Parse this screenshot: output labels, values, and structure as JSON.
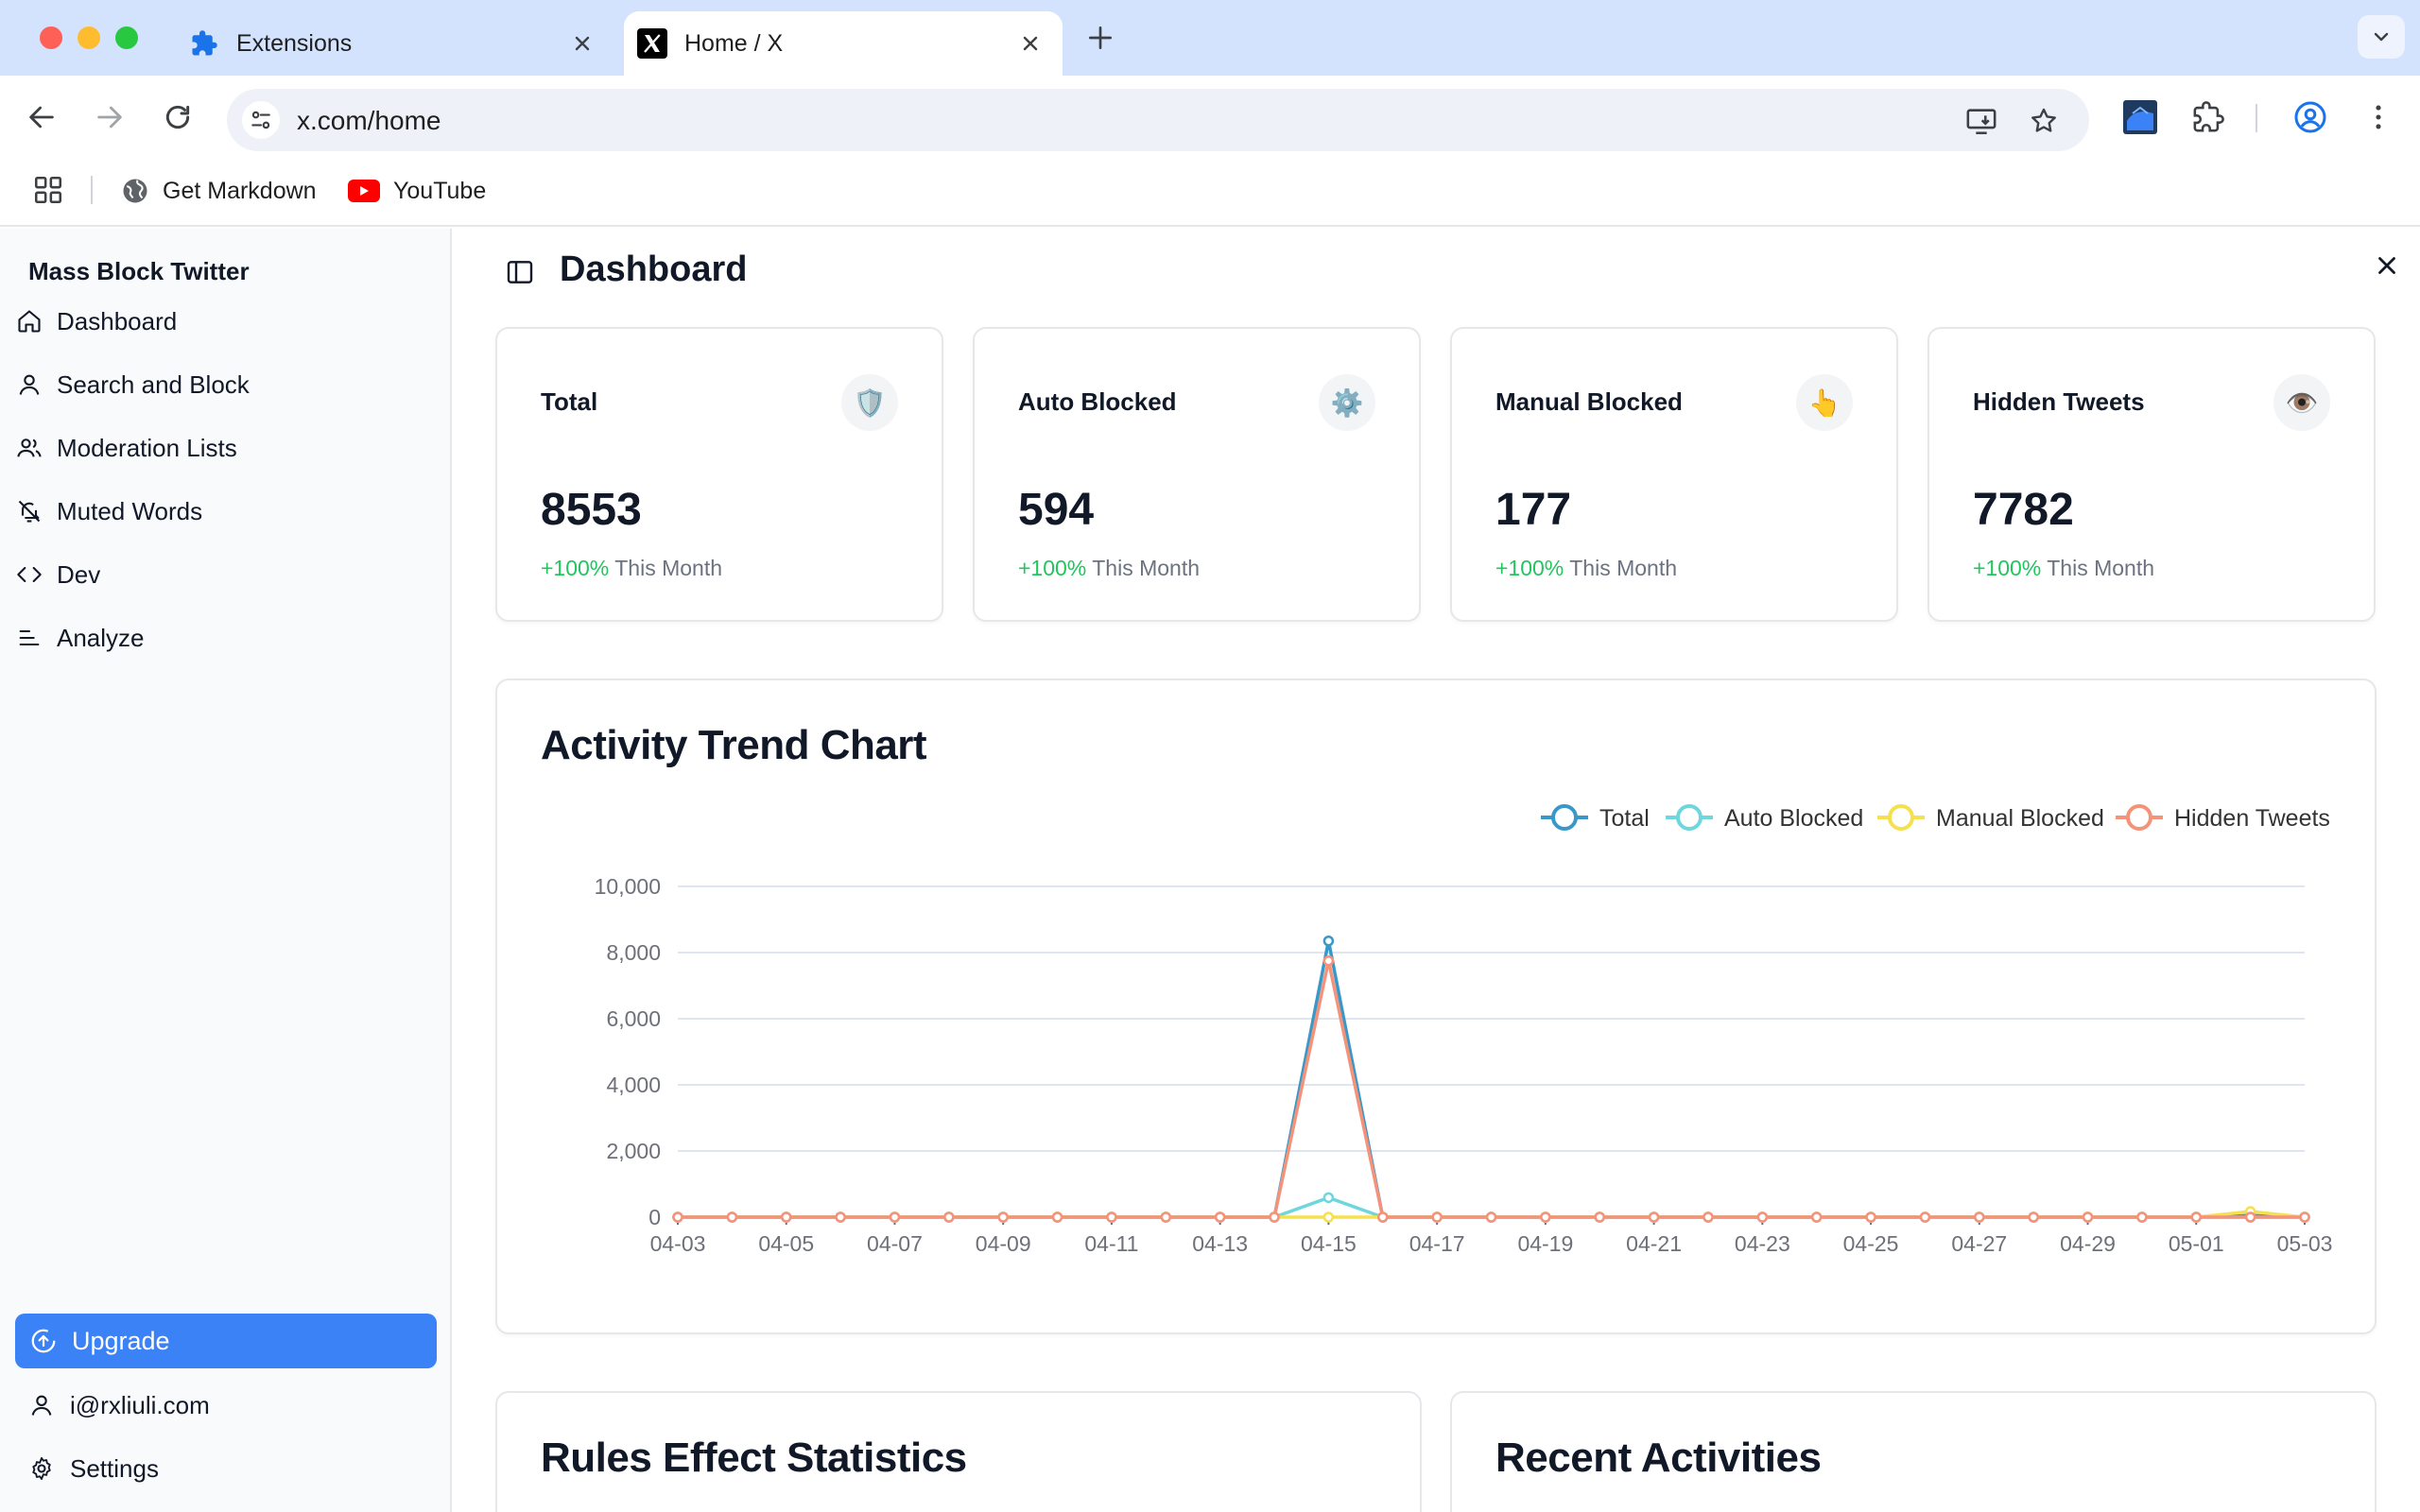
{
  "browser": {
    "tabs": [
      {
        "label": "Extensions",
        "icon": "puzzle-icon",
        "active": false
      },
      {
        "label": "Home / X",
        "icon": "x-logo-icon",
        "active": true
      }
    ],
    "url": "x.com/home",
    "bookmarks": [
      {
        "label": "Get Markdown",
        "icon": "globe-icon"
      },
      {
        "label": "YouTube",
        "icon": "youtube-icon"
      }
    ]
  },
  "sidebar": {
    "app_name": "Mass Block Twitter",
    "items": [
      {
        "label": "Dashboard",
        "icon": "home-icon"
      },
      {
        "label": "Search and Block",
        "icon": "user-icon"
      },
      {
        "label": "Moderation Lists",
        "icon": "users-icon"
      },
      {
        "label": "Muted Words",
        "icon": "bell-off-icon"
      },
      {
        "label": "Dev",
        "icon": "code-icon"
      },
      {
        "label": "Analyze",
        "icon": "list-icon"
      }
    ],
    "upgrade_label": "Upgrade",
    "account_email": "i@rxliuli.com",
    "settings_label": "Settings"
  },
  "main": {
    "title": "Dashboard",
    "stats": [
      {
        "label": "Total",
        "value": "8553",
        "change": "+100%",
        "period": "This Month",
        "icon": "🛡️"
      },
      {
        "label": "Auto Blocked",
        "value": "594",
        "change": "+100%",
        "period": "This Month",
        "icon": "⚙️"
      },
      {
        "label": "Manual Blocked",
        "value": "177",
        "change": "+100%",
        "period": "This Month",
        "icon": "👆"
      },
      {
        "label": "Hidden Tweets",
        "value": "7782",
        "change": "+100%",
        "period": "This Month",
        "icon": "👁️"
      }
    ],
    "chart_title": "Activity Trend Chart",
    "rules_title": "Rules Effect Statistics",
    "recent_title": "Recent Activities"
  },
  "colors": {
    "accent": "#3b82f6",
    "positive": "#22c55e",
    "series_total": "#3a98c9",
    "series_auto": "#6fd6de",
    "series_manual": "#f5e04d",
    "series_hidden": "#f4937a"
  },
  "chart_data": {
    "type": "line",
    "x": [
      "04-03",
      "04-04",
      "04-05",
      "04-06",
      "04-07",
      "04-08",
      "04-09",
      "04-10",
      "04-11",
      "04-12",
      "04-13",
      "04-14",
      "04-15",
      "04-16",
      "04-17",
      "04-18",
      "04-19",
      "04-20",
      "04-21",
      "04-22",
      "04-23",
      "04-24",
      "04-25",
      "04-26",
      "04-27",
      "04-28",
      "04-29",
      "04-30",
      "05-01",
      "05-02",
      "05-03"
    ],
    "x_tick_labels": [
      "04-03",
      "04-05",
      "04-07",
      "04-09",
      "04-11",
      "04-13",
      "04-15",
      "04-17",
      "04-19",
      "04-21",
      "04-23",
      "04-25",
      "04-27",
      "04-29",
      "05-01",
      "05-03"
    ],
    "y_ticks": [
      "0",
      "2,000",
      "4,000",
      "6,000",
      "8,000",
      "10,000"
    ],
    "ylim": [
      0,
      10000
    ],
    "grid": true,
    "legend_position": "top-center",
    "series": [
      {
        "name": "Total",
        "color": "#3a98c9",
        "values": [
          0,
          0,
          0,
          0,
          0,
          0,
          0,
          0,
          0,
          0,
          0,
          0,
          8350,
          0,
          0,
          0,
          0,
          0,
          0,
          0,
          0,
          0,
          0,
          0,
          0,
          0,
          0,
          0,
          0,
          50,
          0
        ]
      },
      {
        "name": "Auto Blocked",
        "color": "#6fd6de",
        "values": [
          0,
          0,
          0,
          0,
          0,
          0,
          0,
          0,
          0,
          0,
          0,
          0,
          590,
          0,
          0,
          0,
          0,
          0,
          0,
          0,
          0,
          0,
          0,
          0,
          0,
          0,
          0,
          0,
          0,
          0,
          0
        ]
      },
      {
        "name": "Manual Blocked",
        "color": "#f5e04d",
        "values": [
          0,
          0,
          0,
          0,
          0,
          0,
          0,
          0,
          0,
          0,
          0,
          0,
          0,
          0,
          0,
          0,
          0,
          0,
          0,
          0,
          0,
          0,
          0,
          0,
          0,
          0,
          0,
          0,
          0,
          170,
          0
        ]
      },
      {
        "name": "Hidden Tweets",
        "color": "#f4937a",
        "values": [
          0,
          0,
          0,
          0,
          0,
          0,
          0,
          0,
          0,
          0,
          0,
          0,
          7750,
          0,
          0,
          0,
          0,
          0,
          0,
          0,
          0,
          0,
          0,
          0,
          0,
          0,
          0,
          0,
          0,
          0,
          0
        ]
      }
    ]
  }
}
